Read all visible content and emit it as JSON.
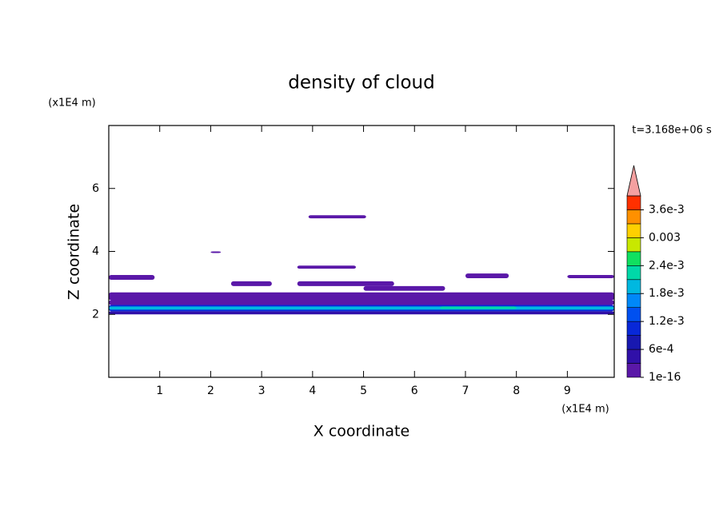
{
  "chart_data": {
    "type": "contour",
    "title": "density of cloud",
    "x_label": "X coordinate",
    "y_label": "Z coordinate",
    "x_unit": "(x1E4 m)",
    "y_unit": "(x1E4 m)",
    "time_label": "t=3.168e+06 s",
    "xlim": [
      0,
      9.92
    ],
    "xticks": [
      1,
      2,
      3,
      4,
      5,
      6,
      7,
      8,
      9
    ],
    "ylim": [
      0,
      8
    ],
    "yticks": [
      2,
      4,
      6
    ],
    "colorbar": {
      "lim": [
        0,
        0.0039
      ],
      "ticks": [
        1e-16,
        {
          "value": 0.0006,
          "label": "6e-4"
        },
        {
          "value": 0.0012,
          "label": "1.2e-3"
        },
        {
          "value": 0.0018,
          "label": "1.8e-3"
        },
        {
          "value": 0.0024,
          "label": "2.4e-3"
        },
        0.003,
        {
          "value": 0.0036,
          "label": "3.6e-3"
        }
      ],
      "colors": [
        "#5a18a8",
        "#3010a8",
        "#1818b0",
        "#0828d8",
        "#0050f0",
        "#0088f8",
        "#00b8e0",
        "#00d8a8",
        "#10e060",
        "#c8e800",
        "#ffd000",
        "#ff9000",
        "#ff3000"
      ],
      "over_color": "#f4a0a0"
    },
    "regions": [
      {
        "x": [
          0,
          9.92
        ],
        "z": [
          2.45,
          2.7
        ],
        "value": 1e-16
      },
      {
        "x": [
          0,
          9.92
        ],
        "z": [
          2.3,
          2.45
        ],
        "value": 0.0003
      },
      {
        "x": [
          0,
          9.92
        ],
        "z": [
          2.0,
          2.1
        ],
        "value": 0.0006
      },
      {
        "x": [
          0,
          9.92
        ],
        "z": [
          2.1,
          2.3
        ],
        "value": 0.0012
      },
      {
        "x": [
          0,
          9.92
        ],
        "z": [
          2.15,
          2.25
        ],
        "value": 0.0018
      },
      {
        "x": [
          6.5,
          8.0
        ],
        "z": [
          2.17,
          2.25
        ],
        "value": 0.0024
      },
      {
        "x": [
          3.92,
          5.05
        ],
        "z": [
          5.05,
          5.15
        ],
        "value": 1e-16
      },
      {
        "x": [
          2.0,
          2.2
        ],
        "z": [
          3.95,
          4.0
        ],
        "value": 1e-16
      },
      {
        "x": [
          3.7,
          4.85
        ],
        "z": [
          3.45,
          3.55
        ],
        "value": 1e-16
      },
      {
        "x": [
          0,
          0.9
        ],
        "z": [
          3.1,
          3.25
        ],
        "value": 1e-16
      },
      {
        "x": [
          2.4,
          3.2
        ],
        "z": [
          2.9,
          3.05
        ],
        "value": 1e-16
      },
      {
        "x": [
          3.7,
          5.6
        ],
        "z": [
          2.9,
          3.05
        ],
        "value": 1e-16
      },
      {
        "x": [
          5.0,
          6.6
        ],
        "z": [
          2.75,
          2.9
        ],
        "value": 1e-16
      },
      {
        "x": [
          7.0,
          7.85
        ],
        "z": [
          3.15,
          3.3
        ],
        "value": 1e-16
      },
      {
        "x": [
          9.0,
          9.92
        ],
        "z": [
          3.15,
          3.25
        ],
        "value": 1e-16
      }
    ]
  }
}
